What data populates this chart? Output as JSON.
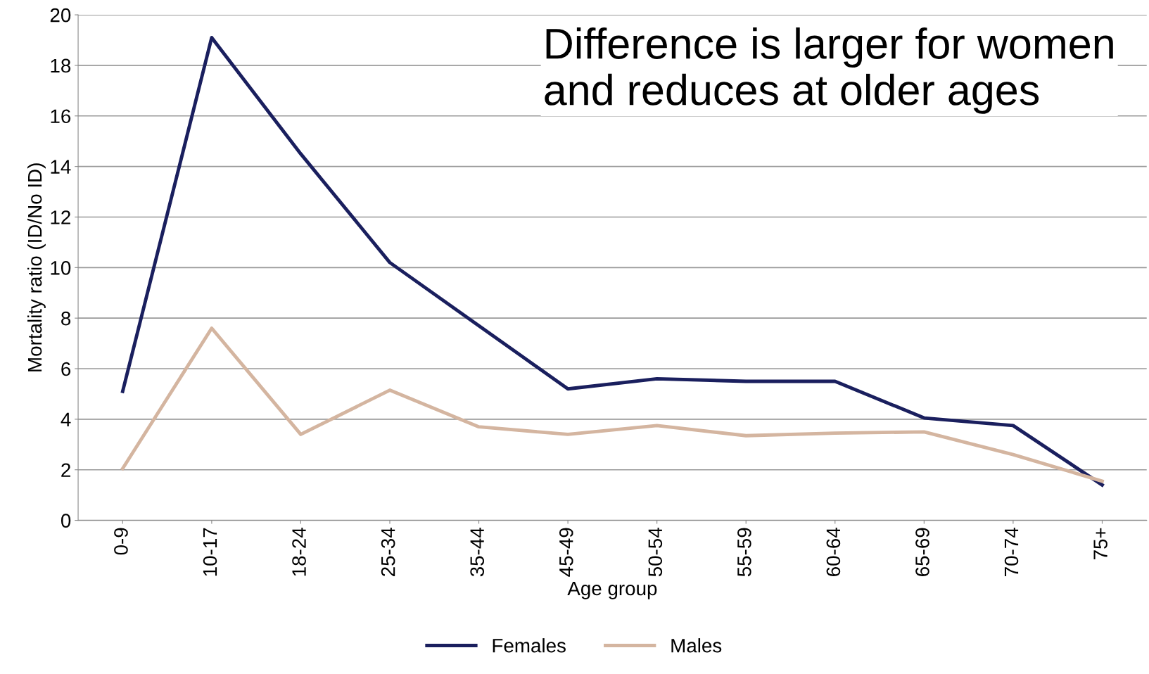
{
  "chart_data": {
    "type": "line",
    "xlabel": "Age group",
    "ylabel": "Mortality ratio (ID/No ID)",
    "categories": [
      "0-9",
      "10-17",
      "18-24",
      "25-34",
      "35-44",
      "45-49",
      "50-54",
      "55-59",
      "60-64",
      "65-69",
      "70-74",
      "75+"
    ],
    "series": [
      {
        "name": "Females",
        "color": "#1a1f5e",
        "values": [
          5.1,
          19.1,
          14.5,
          10.2,
          7.7,
          5.2,
          5.6,
          5.5,
          5.5,
          4.05,
          3.75,
          1.4
        ]
      },
      {
        "name": "Males",
        "color": "#d4b5a0",
        "values": [
          2.05,
          7.6,
          3.4,
          5.15,
          3.7,
          3.4,
          3.75,
          3.35,
          3.45,
          3.5,
          2.6,
          1.55
        ]
      }
    ],
    "ylim": [
      0,
      20
    ],
    "yticks": [
      0,
      2,
      4,
      6,
      8,
      10,
      12,
      14,
      16,
      18,
      20
    ],
    "grid": "y",
    "legend": "bottom",
    "marker": "none",
    "line_style": "solid",
    "annotations": [
      "Difference is larger for women and reduces at older ages"
    ]
  }
}
